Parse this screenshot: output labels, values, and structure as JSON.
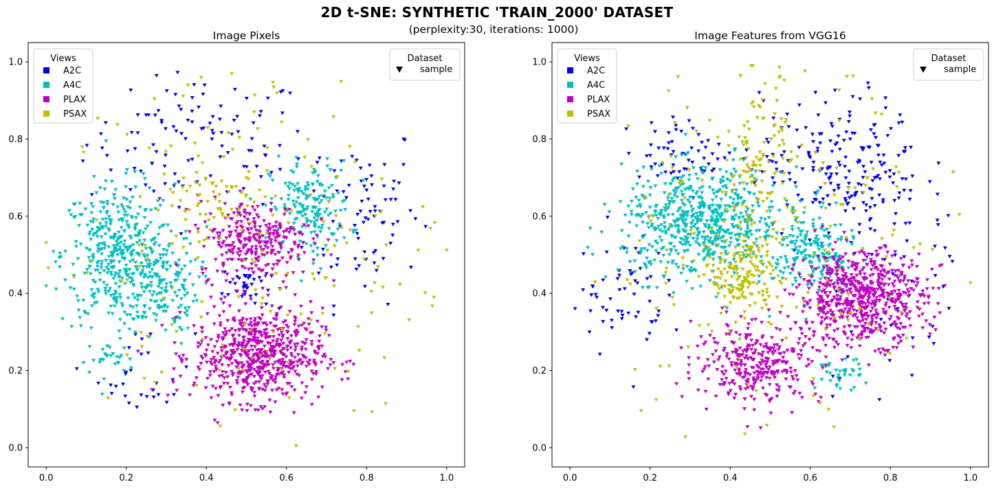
{
  "suptitle": "2D t-SNE: SYNTHETIC 'TRAIN_2000' DATASET",
  "subtitle": "(perplexity:30, iterations: 1000)",
  "colors": {
    "A2C": "#0000ee",
    "A4C": "#00bfbf",
    "PLAX": "#bf00bf",
    "PSAX": "#bfbf00"
  },
  "chart_data": [
    {
      "type": "scatter",
      "title": "Image Pixels",
      "xlabel": "",
      "ylabel": "",
      "xlim": [
        -0.045,
        1.045
      ],
      "ylim": [
        -0.05,
        1.05
      ],
      "xticks": [
        "0.0",
        "0.2",
        "0.4",
        "0.6",
        "0.8",
        "1.0"
      ],
      "yticks": [
        "0.0",
        "0.2",
        "0.4",
        "0.6",
        "0.8",
        "1.0"
      ],
      "grid": false,
      "marker": "triangle-down",
      "legend_views": {
        "title": "Views",
        "placement": "upper-left",
        "entries": [
          "A2C",
          "A4C",
          "PLAX",
          "PSAX"
        ]
      },
      "legend_dataset": {
        "title": "Dataset",
        "placement": "upper-right",
        "entries": [
          "sample"
        ]
      },
      "series": [
        {
          "name": "A2C",
          "approx_clusters": [
            {
              "cx": 0.38,
              "cy": 0.79,
              "sx": 0.14,
              "sy": 0.09,
              "n": 110
            },
            {
              "cx": 0.79,
              "cy": 0.62,
              "sx": 0.07,
              "sy": 0.12,
              "n": 80
            },
            {
              "cx": 0.5,
              "cy": 0.42,
              "sx": 0.03,
              "sy": 0.03,
              "n": 40
            },
            {
              "cx": 0.25,
              "cy": 0.19,
              "sx": 0.06,
              "sy": 0.06,
              "n": 30
            }
          ]
        },
        {
          "name": "A4C",
          "approx_clusters": [
            {
              "cx": 0.18,
              "cy": 0.5,
              "sx": 0.07,
              "sy": 0.09,
              "n": 420
            },
            {
              "cx": 0.28,
              "cy": 0.42,
              "sx": 0.05,
              "sy": 0.06,
              "n": 160
            },
            {
              "cx": 0.66,
              "cy": 0.62,
              "sx": 0.05,
              "sy": 0.06,
              "n": 180
            },
            {
              "cx": 0.16,
              "cy": 0.23,
              "sx": 0.03,
              "sy": 0.02,
              "n": 25
            }
          ]
        },
        {
          "name": "PLAX",
          "approx_clusters": [
            {
              "cx": 0.53,
              "cy": 0.24,
              "sx": 0.08,
              "sy": 0.06,
              "n": 650
            },
            {
              "cx": 0.52,
              "cy": 0.54,
              "sx": 0.07,
              "sy": 0.05,
              "n": 300
            }
          ]
        },
        {
          "name": "PSAX",
          "approx_clusters": [
            {
              "cx": 0.5,
              "cy": 0.5,
              "sx": 0.25,
              "sy": 0.27,
              "n": 200
            },
            {
              "cx": 0.4,
              "cy": 0.65,
              "sx": 0.06,
              "sy": 0.04,
              "n": 50
            }
          ]
        }
      ]
    },
    {
      "type": "scatter",
      "title": "Image Features from VGG16",
      "xlabel": "",
      "ylabel": "",
      "xlim": [
        -0.045,
        1.045
      ],
      "ylim": [
        -0.05,
        1.05
      ],
      "xticks": [
        "0.0",
        "0.2",
        "0.4",
        "0.6",
        "0.8",
        "1.0"
      ],
      "yticks": [
        "0.0",
        "0.2",
        "0.4",
        "0.6",
        "0.8",
        "1.0"
      ],
      "grid": false,
      "marker": "triangle-down",
      "legend_views": {
        "title": "Views",
        "placement": "upper-left",
        "entries": [
          "A2C",
          "A4C",
          "PLAX",
          "PSAX"
        ]
      },
      "legend_dataset": {
        "title": "Dataset",
        "placement": "upper-right",
        "entries": [
          "sample"
        ]
      },
      "series": [
        {
          "name": "A2C",
          "approx_clusters": [
            {
              "cx": 0.68,
              "cy": 0.73,
              "sx": 0.1,
              "sy": 0.09,
              "n": 200
            },
            {
              "cx": 0.3,
              "cy": 0.77,
              "sx": 0.08,
              "sy": 0.04,
              "n": 60
            },
            {
              "cx": 0.12,
              "cy": 0.4,
              "sx": 0.06,
              "sy": 0.08,
              "n": 60
            },
            {
              "cx": 0.8,
              "cy": 0.4,
              "sx": 0.1,
              "sy": 0.2,
              "n": 60
            }
          ]
        },
        {
          "name": "A4C",
          "approx_clusters": [
            {
              "cx": 0.33,
              "cy": 0.58,
              "sx": 0.1,
              "sy": 0.07,
              "n": 650
            },
            {
              "cx": 0.61,
              "cy": 0.5,
              "sx": 0.05,
              "sy": 0.06,
              "n": 200
            },
            {
              "cx": 0.67,
              "cy": 0.19,
              "sx": 0.03,
              "sy": 0.02,
              "n": 35
            }
          ]
        },
        {
          "name": "PLAX",
          "approx_clusters": [
            {
              "cx": 0.73,
              "cy": 0.39,
              "sx": 0.08,
              "sy": 0.06,
              "n": 650
            },
            {
              "cx": 0.47,
              "cy": 0.22,
              "sx": 0.08,
              "sy": 0.05,
              "n": 330
            }
          ]
        },
        {
          "name": "PSAX",
          "approx_clusters": [
            {
              "cx": 0.43,
              "cy": 0.44,
              "sx": 0.04,
              "sy": 0.05,
              "n": 150
            },
            {
              "cx": 0.47,
              "cy": 0.72,
              "sx": 0.04,
              "sy": 0.13,
              "n": 120
            },
            {
              "cx": 0.5,
              "cy": 0.5,
              "sx": 0.26,
              "sy": 0.27,
              "n": 200
            }
          ]
        }
      ]
    }
  ]
}
